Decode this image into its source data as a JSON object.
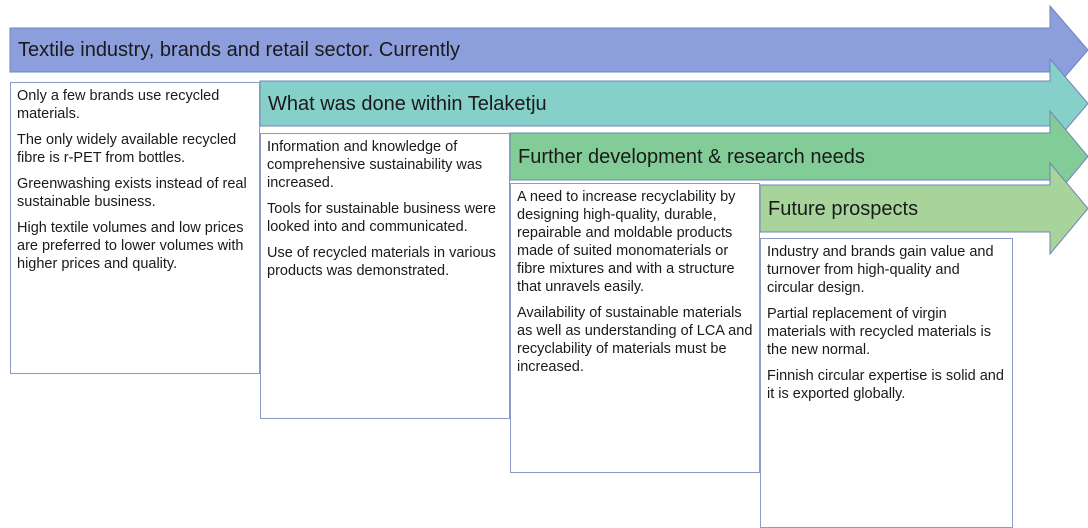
{
  "stages": [
    {
      "title": "Textile industry, brands and retail sector. Currently",
      "paragraphs": [
        "Only a few brands use recycled materials.",
        "The only widely available recycled fibre is r-PET from bottles.",
        "Greenwashing exists instead of real sustainable business.",
        "High textile volumes and low prices are preferred to lower volumes with higher prices and quality."
      ]
    },
    {
      "title": "What was done within Telaketju",
      "paragraphs": [
        "Information and knowledge of comprehensive sustainability was increased.",
        "Tools for sustainable business were looked into and communicated.",
        "Use of recycled materials in various products was demonstrated."
      ]
    },
    {
      "title": "Further development & research needs",
      "paragraphs": [
        "A need to increase recyclability by designing high-quality, durable, repairable and moldable products made of suited monomaterials or fibre mixtures and with a structure that unravels easily.",
        "Availability of sustainable materials as well as understanding of LCA and recyclability of materials must be increased."
      ]
    },
    {
      "title": "Future prospects",
      "paragraphs": [
        "Industry and brands gain value and turnover from high-quality and circular design.",
        "Partial replacement of virgin materials with recycled materials is the new normal.",
        "Finnish circular expertise is solid and it is exported globally."
      ]
    }
  ]
}
